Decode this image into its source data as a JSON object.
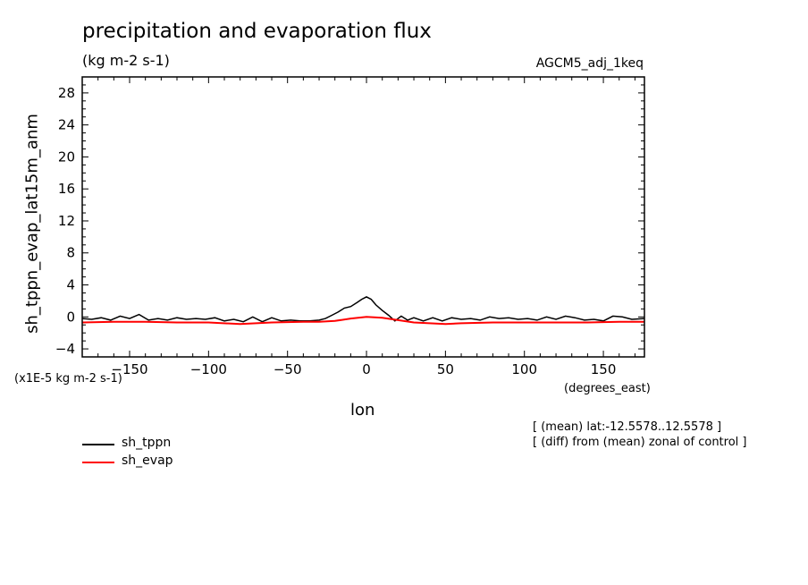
{
  "chart_data": {
    "type": "line",
    "title": "precipitation and evaporation flux",
    "units": "(kg m-2 s-1)",
    "dataset": "AGCM5_adj_1keq",
    "ylabel": "sh_tppn_evap_lat15m_anm",
    "xlabel": "lon",
    "x_units": "(degrees_east)",
    "y_scale_note": "(x1E-5 kg m-2 s-1)",
    "notes": [
      "[ (mean) lat:-12.5578..12.5578 ]",
      "[ (diff) from (mean) zonal of control ]"
    ],
    "xlim": [
      -180,
      176
    ],
    "ylim": [
      -5,
      30
    ],
    "x_ticks": [
      -150,
      -100,
      -50,
      0,
      50,
      100,
      150
    ],
    "x_tick_labels": [
      "-150",
      "-100",
      "-50",
      "0",
      "50",
      "100",
      "150"
    ],
    "y_ticks": [
      -4,
      0,
      4,
      8,
      12,
      16,
      20,
      24,
      28
    ],
    "y_tick_labels": [
      "-4",
      "0",
      "4",
      "8",
      "12",
      "16",
      "20",
      "24",
      "28"
    ],
    "legend_position": "bottom-left",
    "series": [
      {
        "name": "sh_tppn",
        "color": "#000000",
        "x": [
          -180,
          -174,
          -168,
          -162,
          -156,
          -150,
          -144,
          -138,
          -132,
          -126,
          -120,
          -114,
          -108,
          -102,
          -96,
          -90,
          -84,
          -78,
          -72,
          -66,
          -60,
          -54,
          -48,
          -42,
          -36,
          -30,
          -26,
          -22,
          -18,
          -14,
          -10,
          -6,
          -3,
          0,
          3,
          6,
          10,
          14,
          18,
          22,
          26,
          30,
          36,
          42,
          48,
          54,
          60,
          66,
          72,
          78,
          84,
          90,
          96,
          102,
          108,
          114,
          120,
          126,
          132,
          138,
          144,
          150,
          156,
          162,
          168,
          176
        ],
        "y": [
          -0.2,
          -0.3,
          -0.1,
          -0.4,
          0.1,
          -0.2,
          0.3,
          -0.4,
          -0.2,
          -0.4,
          -0.1,
          -0.3,
          -0.2,
          -0.3,
          -0.1,
          -0.5,
          -0.3,
          -0.6,
          0.0,
          -0.6,
          -0.1,
          -0.5,
          -0.4,
          -0.5,
          -0.5,
          -0.4,
          -0.2,
          0.2,
          0.6,
          1.1,
          1.3,
          1.8,
          2.2,
          2.5,
          2.2,
          1.5,
          0.8,
          0.2,
          -0.5,
          0.1,
          -0.4,
          -0.1,
          -0.5,
          -0.1,
          -0.5,
          -0.1,
          -0.3,
          -0.2,
          -0.4,
          0.0,
          -0.2,
          -0.1,
          -0.3,
          -0.2,
          -0.4,
          0.0,
          -0.3,
          0.1,
          -0.1,
          -0.4,
          -0.3,
          -0.5,
          0.1,
          0.0,
          -0.3,
          -0.2
        ]
      },
      {
        "name": "sh_evap",
        "color": "#ff0000",
        "x": [
          -180,
          -160,
          -140,
          -120,
          -100,
          -80,
          -60,
          -40,
          -30,
          -20,
          -10,
          0,
          10,
          20,
          30,
          40,
          50,
          60,
          80,
          100,
          120,
          140,
          160,
          176
        ],
        "y": [
          -0.7,
          -0.6,
          -0.6,
          -0.7,
          -0.7,
          -0.9,
          -0.7,
          -0.6,
          -0.6,
          -0.5,
          -0.2,
          0.0,
          -0.1,
          -0.4,
          -0.7,
          -0.8,
          -0.9,
          -0.8,
          -0.7,
          -0.7,
          -0.7,
          -0.7,
          -0.6,
          -0.6
        ]
      }
    ]
  }
}
